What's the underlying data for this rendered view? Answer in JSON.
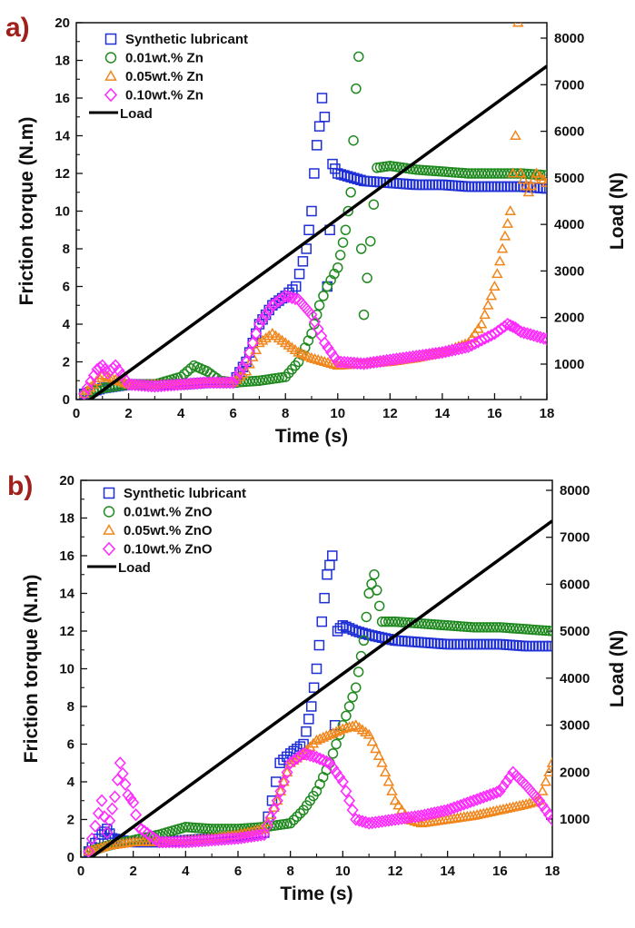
{
  "colors": {
    "synthetic": "#1f2fd6",
    "zn1": "#218a21",
    "zn5": "#f0861c",
    "zn10": "#ff27ff",
    "load": "#000000",
    "panel_label": "#a0201c"
  },
  "chart_data": [
    {
      "type": "scatter",
      "panel_label": "a)",
      "xlabel": "Time (s)",
      "ylabel": "Friction torque (N.m)",
      "y2label": "Load (N)",
      "xlim": [
        0,
        18
      ],
      "ylim": [
        0,
        20
      ],
      "y2lim": [
        0,
        8000
      ],
      "x_ticks": [
        "0",
        "2",
        "4",
        "6",
        "8",
        "10",
        "12",
        "14",
        "16",
        "18"
      ],
      "y_ticks": [
        "0",
        "2",
        "4",
        "6",
        "8",
        "10",
        "12",
        "14",
        "16",
        "18",
        "20"
      ],
      "y2_ticks": [
        "1000",
        "2000",
        "3000",
        "4000",
        "5000",
        "6000",
        "7000",
        "8000"
      ],
      "legend": [
        "Synthetic lubricant",
        "0.01wt.% Zn",
        "0.05wt.% Zn",
        "0.10wt.% Zn",
        "Load"
      ],
      "series": [
        {
          "name": "Synthetic lubricant",
          "marker": "square",
          "color": "#1f2fd6",
          "x": [
            0.3,
            1.0,
            2.0,
            3.0,
            4.0,
            5.0,
            6.0,
            6.5,
            7.0,
            7.5,
            8.0,
            8.4,
            8.8,
            9.0,
            9.1,
            9.2,
            9.3,
            9.4,
            9.5,
            9.6,
            9.7,
            9.8,
            10.0,
            10.5,
            11.0,
            12.0,
            13.0,
            14.0,
            15.0,
            16.0,
            17.0,
            18.0
          ],
          "values": [
            0.3,
            0.6,
            0.8,
            0.8,
            0.8,
            0.9,
            0.9,
            2.0,
            4.0,
            5.0,
            5.5,
            6.0,
            8.0,
            10.0,
            12.0,
            13.5,
            14.5,
            16.0,
            15.0,
            6.0,
            9.0,
            12.5,
            12.0,
            11.8,
            11.6,
            11.5,
            11.4,
            11.4,
            11.3,
            11.3,
            11.3,
            11.2
          ]
        },
        {
          "name": "0.01wt.% Zn",
          "marker": "circle",
          "color": "#218a21",
          "x": [
            0.3,
            1.0,
            2.0,
            3.0,
            4.0,
            4.5,
            5.0,
            5.5,
            6.0,
            7.0,
            8.0,
            8.5,
            9.0,
            9.3,
            9.6,
            10.0,
            10.3,
            10.5,
            10.7,
            10.8,
            10.9,
            11.0,
            11.5,
            12.0,
            13.0,
            14.0,
            15.0,
            16.0,
            17.0,
            18.0
          ],
          "values": [
            0.3,
            0.6,
            0.8,
            0.8,
            1.2,
            1.8,
            1.5,
            1.0,
            0.9,
            1.0,
            1.2,
            2.0,
            3.5,
            5.0,
            6.0,
            7.0,
            9.0,
            11.0,
            16.5,
            18.2,
            8.0,
            4.5,
            12.3,
            12.4,
            12.2,
            12.1,
            12.0,
            12.0,
            12.0,
            11.9
          ]
        },
        {
          "name": "0.05wt.% Zn",
          "marker": "triangle",
          "color": "#f0861c",
          "x": [
            0.3,
            1.0,
            2.0,
            3.0,
            4.0,
            5.0,
            6.0,
            6.5,
            7.0,
            7.5,
            8.0,
            8.5,
            9.0,
            9.5,
            10.0,
            11.0,
            12.0,
            13.0,
            14.0,
            15.0,
            15.5,
            16.0,
            16.3,
            16.6,
            16.8,
            16.9,
            17.0,
            17.3,
            17.6,
            18.0
          ],
          "values": [
            0.3,
            1.3,
            0.8,
            0.8,
            0.8,
            0.9,
            0.9,
            1.5,
            3.0,
            3.5,
            3.0,
            2.5,
            2.2,
            2.0,
            1.8,
            1.9,
            2.0,
            2.2,
            2.5,
            3.0,
            4.0,
            6.0,
            8.0,
            10.0,
            14.0,
            20.0,
            12.0,
            11.0,
            12.0,
            11.5
          ]
        },
        {
          "name": "0.10wt.% Zn",
          "marker": "diamond",
          "color": "#ff27ff",
          "x": [
            0.3,
            0.8,
            1.0,
            1.2,
            1.5,
            2.0,
            3.0,
            4.0,
            5.0,
            6.0,
            6.5,
            7.0,
            7.5,
            8.0,
            8.5,
            9.0,
            9.5,
            10.0,
            11.0,
            12.0,
            13.0,
            14.0,
            15.0,
            16.0,
            16.5,
            16.8,
            17.0,
            17.5,
            18.0
          ],
          "values": [
            0.3,
            1.6,
            1.8,
            1.4,
            1.8,
            0.8,
            0.7,
            0.8,
            0.9,
            0.9,
            2.0,
            4.0,
            5.0,
            5.5,
            5.3,
            4.5,
            3.0,
            2.0,
            1.9,
            2.1,
            2.3,
            2.5,
            2.8,
            3.5,
            4.0,
            3.8,
            3.6,
            3.4,
            3.2
          ]
        }
      ],
      "load_line": {
        "name": "Load",
        "x": [
          0,
          18
        ],
        "load_n": [
          20,
          7400
        ]
      }
    },
    {
      "type": "scatter",
      "panel_label": "b)",
      "xlabel": "Time (s)",
      "ylabel": "Friction torque (N.m)",
      "y2label": "Load (N)",
      "xlim": [
        0,
        18
      ],
      "ylim": [
        0,
        20
      ],
      "y2lim": [
        0,
        8000
      ],
      "x_ticks": [
        "0",
        "2",
        "4",
        "6",
        "8",
        "10",
        "12",
        "14",
        "16",
        "18"
      ],
      "y_ticks": [
        "0",
        "2",
        "4",
        "6",
        "8",
        "10",
        "12",
        "14",
        "16",
        "18",
        "20"
      ],
      "y2_ticks": [
        "1000",
        "2000",
        "3000",
        "4000",
        "5000",
        "6000",
        "7000",
        "8000"
      ],
      "legend": [
        "Synthetic lubricant",
        "0.01wt.% ZnO",
        "0.05wt.% ZnO",
        "0.10wt.% ZnO",
        "Load"
      ],
      "series": [
        {
          "name": "Synthetic lubricant",
          "marker": "square",
          "color": "#1f2fd6",
          "x": [
            0.3,
            0.8,
            1.0,
            1.2,
            1.5,
            2.0,
            3.0,
            4.0,
            5.0,
            6.0,
            7.0,
            7.3,
            7.6,
            8.0,
            8.5,
            8.8,
            9.0,
            9.2,
            9.4,
            9.6,
            9.7,
            9.8,
            10.0,
            10.5,
            11.0,
            12.0,
            13.0,
            14.0,
            15.0,
            16.0,
            17.0,
            18.0
          ],
          "values": [
            0.3,
            1.2,
            1.5,
            1.0,
            0.9,
            0.8,
            0.8,
            0.9,
            1.0,
            1.1,
            1.3,
            3.0,
            5.0,
            5.5,
            6.0,
            8.0,
            10.0,
            12.5,
            15.0,
            16.0,
            7.0,
            12.0,
            12.3,
            12.0,
            11.8,
            11.5,
            11.4,
            11.3,
            11.3,
            11.3,
            11.2,
            11.2
          ]
        },
        {
          "name": "0.01wt.% ZnO",
          "marker": "circle",
          "color": "#218a21",
          "x": [
            0.3,
            1.0,
            2.0,
            3.0,
            4.0,
            5.0,
            6.0,
            7.0,
            8.0,
            8.5,
            9.0,
            9.5,
            10.0,
            10.5,
            10.8,
            11.0,
            11.2,
            11.5,
            12.0,
            13.0,
            14.0,
            15.0,
            16.0,
            17.0,
            18.0
          ],
          "values": [
            0.3,
            0.6,
            0.9,
            1.2,
            1.6,
            1.5,
            1.5,
            1.6,
            1.8,
            2.5,
            3.5,
            5.0,
            7.0,
            9.0,
            11.5,
            14.0,
            15.0,
            12.5,
            12.5,
            12.4,
            12.3,
            12.2,
            12.2,
            12.1,
            12.0
          ]
        },
        {
          "name": "0.05wt.% ZnO",
          "marker": "triangle",
          "color": "#f0861c",
          "x": [
            0.3,
            1.0,
            2.0,
            3.0,
            4.0,
            5.0,
            6.0,
            7.0,
            7.5,
            8.0,
            8.5,
            9.0,
            9.5,
            10.0,
            10.5,
            11.0,
            11.5,
            12.0,
            12.5,
            13.0,
            14.0,
            15.0,
            16.0,
            17.0,
            17.5,
            18.0
          ],
          "values": [
            0.3,
            0.6,
            0.8,
            0.8,
            0.9,
            1.0,
            1.2,
            1.5,
            3.0,
            5.0,
            5.5,
            6.2,
            6.5,
            6.8,
            7.0,
            6.5,
            5.0,
            3.0,
            2.0,
            1.8,
            2.0,
            2.2,
            2.5,
            2.8,
            3.0,
            5.0
          ]
        },
        {
          "name": "0.10wt.% ZnO",
          "marker": "diamond",
          "color": "#ff27ff",
          "x": [
            0.3,
            0.8,
            1.0,
            1.3,
            1.5,
            1.8,
            2.0,
            2.2,
            3.0,
            4.0,
            5.0,
            6.0,
            7.0,
            7.5,
            8.0,
            8.5,
            9.0,
            9.5,
            10.0,
            10.5,
            11.0,
            12.0,
            13.0,
            14.0,
            15.0,
            16.0,
            16.5,
            17.0,
            17.5,
            18.0
          ],
          "values": [
            0.3,
            3.0,
            1.3,
            3.2,
            5.0,
            3.3,
            2.9,
            1.6,
            0.8,
            0.8,
            0.9,
            1.0,
            1.2,
            3.0,
            5.0,
            5.5,
            5.3,
            5.0,
            4.0,
            2.0,
            1.8,
            2.0,
            2.2,
            2.5,
            3.0,
            3.5,
            4.5,
            3.8,
            3.0,
            2.0
          ]
        }
      ],
      "load_line": {
        "name": "Load",
        "x": [
          0,
          18
        ],
        "load_n": [
          20,
          7350
        ]
      }
    }
  ]
}
